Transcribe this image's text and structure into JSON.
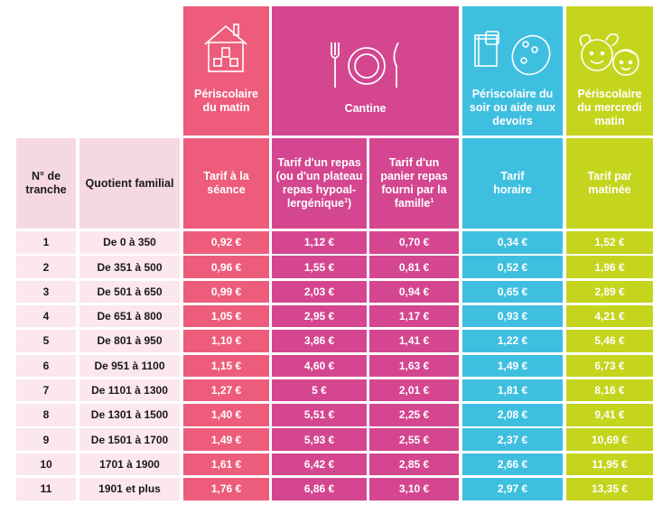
{
  "colors": {
    "pink": "#ed5d7b",
    "magenta": "#d4468f",
    "blue": "#3fbfe0",
    "lime": "#c5d41c",
    "label_bg": "#f6d8e1",
    "row_bg": "#fbe7ed"
  },
  "icons": {
    "matin": "house-icon",
    "cantine": "plate-cutlery-icon",
    "soir": "book-palette-icon",
    "mercredi": "children-faces-icon"
  },
  "headers": {
    "matin": "Périscolaire du matin",
    "cantine": "Cantine",
    "soir": "Périscolaire du soir ou aide aux devoirs",
    "mercredi": "Périscolaire du mercredi matin"
  },
  "subheaders": {
    "tranche": "N° de tranche",
    "quotient": "Quotient familial",
    "seance": "Tarif à la séance",
    "repas": "Tarif d'un repas (ou d'un plateau repas hypoal-lergénique",
    "repas_sup": "1",
    "panier": "Tarif d'un panier repas fourni par la famille",
    "panier_sup": "1",
    "horaire": "Tarif horaire",
    "matinee": "Tarif par matinée"
  },
  "rows": [
    {
      "n": "1",
      "q": "De 0 à 350",
      "a": "0,92 €",
      "b": "1,12 €",
      "c": "0,70 €",
      "d": "0,34 €",
      "e": "1,52 €"
    },
    {
      "n": "2",
      "q": "De 351 à 500",
      "a": "0,96 €",
      "b": "1,55 €",
      "c": "0,81 €",
      "d": "0,52 €",
      "e": "1,96 €"
    },
    {
      "n": "3",
      "q": "De 501 à 650",
      "a": "0,99 €",
      "b": "2,03 €",
      "c": "0,94 €",
      "d": "0,65 €",
      "e": "2,89 €"
    },
    {
      "n": "4",
      "q": "De 651 à 800",
      "a": "1,05 €",
      "b": "2,95 €",
      "c": "1,17 €",
      "d": "0,93 €",
      "e": "4,21 €"
    },
    {
      "n": "5",
      "q": "De 801 à 950",
      "a": "1,10 €",
      "b": "3,86 €",
      "c": "1,41 €",
      "d": "1,22 €",
      "e": "5,46 €"
    },
    {
      "n": "6",
      "q": "De 951 à 1100",
      "a": "1,15 €",
      "b": "4,60 €",
      "c": "1,63 €",
      "d": "1,49 €",
      "e": "6,73 €"
    },
    {
      "n": "7",
      "q": "De 1101 à 1300",
      "a": "1,27 €",
      "b": "5 €",
      "c": "2,01 €",
      "d": "1,81 €",
      "e": "8,16 €"
    },
    {
      "n": "8",
      "q": "De 1301 à 1500",
      "a": "1,40 €",
      "b": "5,51 €",
      "c": "2,25 €",
      "d": "2,08 €",
      "e": "9,41 €"
    },
    {
      "n": "9",
      "q": "De 1501 à 1700",
      "a": "1,49 €",
      "b": "5,93 €",
      "c": "2,55 €",
      "d": "2,37 €",
      "e": "10,69 €"
    },
    {
      "n": "10",
      "q": "1701 à 1900",
      "a": "1,61 €",
      "b": "6,42 €",
      "c": "2,85 €",
      "d": "2,66 €",
      "e": "11,95 €"
    },
    {
      "n": "11",
      "q": "1901 et plus",
      "a": "1,76 €",
      "b": "6,86 €",
      "c": "3,10 €",
      "d": "2,97 €",
      "e": "13,35 €"
    }
  ]
}
